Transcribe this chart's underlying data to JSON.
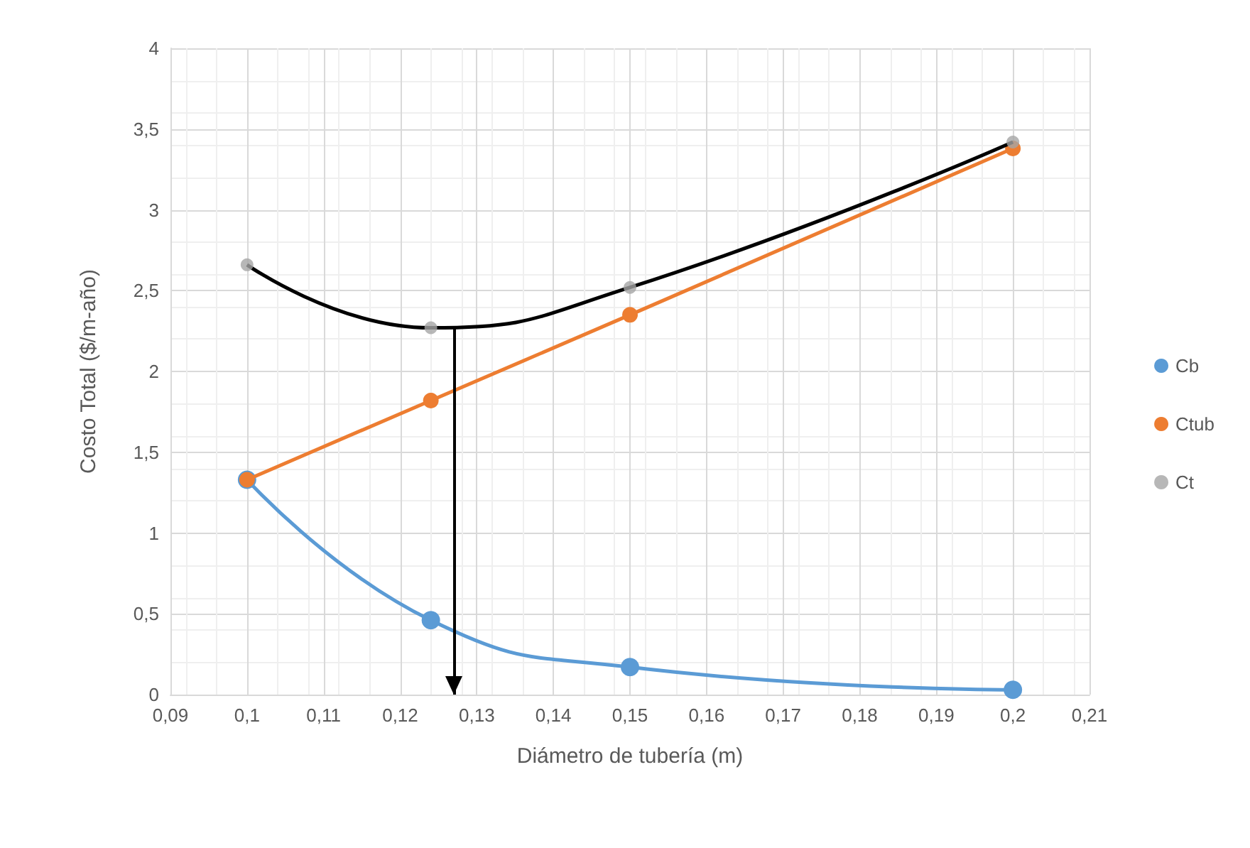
{
  "chart_data": {
    "type": "line",
    "xlabel": "Diámetro de tubería (m)",
    "ylabel": "Costo Total ($/m-año)",
    "x": [
      0.1,
      0.124,
      0.15,
      0.2
    ],
    "series": [
      {
        "name": "Cb",
        "color": "#5b9bd5",
        "values": [
          1.33,
          0.46,
          0.17,
          0.03
        ]
      },
      {
        "name": "Ctub",
        "color": "#ed7d31",
        "values": [
          1.33,
          1.82,
          2.35,
          3.38
        ]
      },
      {
        "name": "Ct",
        "type": "scatter",
        "color": "#a5a5a5",
        "values": [
          2.66,
          2.27,
          2.52,
          3.42
        ]
      },
      {
        "type": "line",
        "color": "#000000",
        "values": [
          2.66,
          2.27,
          2.52,
          3.42
        ],
        "marker": "none"
      }
    ],
    "ref_lines": [
      {
        "axis": "x",
        "value": 0.127,
        "color": "#000000"
      }
    ],
    "xlim": [
      0.09,
      0.21
    ],
    "xticks": [
      {
        "value": 0.09,
        "label": "0,09"
      },
      {
        "value": 0.1,
        "label": "0,1"
      },
      {
        "value": 0.11,
        "label": "0,11"
      },
      {
        "value": 0.12,
        "label": "0,12"
      },
      {
        "value": 0.13,
        "label": "0,13"
      },
      {
        "value": 0.14,
        "label": "0,14"
      },
      {
        "value": 0.15,
        "label": "0,15"
      },
      {
        "value": 0.16,
        "label": "0,16"
      },
      {
        "value": 0.17,
        "label": "0,17"
      },
      {
        "value": 0.18,
        "label": "0,18"
      },
      {
        "value": 0.19,
        "label": "0,19"
      },
      {
        "value": 0.2,
        "label": "0,2"
      },
      {
        "value": 0.21,
        "label": "0,21"
      }
    ],
    "ylim": [
      0,
      4
    ],
    "yticks": [
      0,
      {
        "value": 0.5,
        "label": "0,5"
      },
      1,
      {
        "value": 1.5,
        "label": "1,5"
      },
      2,
      {
        "value": 2.5,
        "label": "2,5"
      },
      3,
      {
        "value": 3.5,
        "label": "3,5"
      },
      4
    ],
    "grid": true,
    "legend": "right",
    "marker": "circle"
  }
}
